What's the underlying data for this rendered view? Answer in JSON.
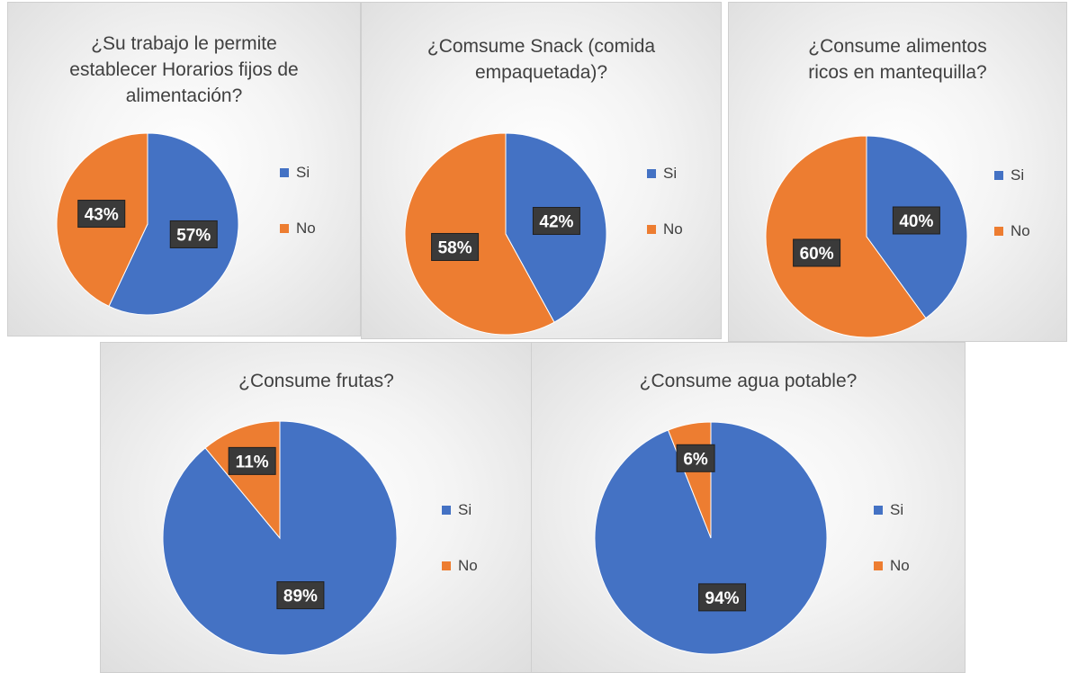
{
  "colors": {
    "si": "#4472C4",
    "no": "#ED7D31"
  },
  "legend_labels": [
    "Si",
    "No"
  ],
  "chart_data": [
    {
      "type": "pie",
      "title_lines": [
        "¿Su trabajo le permite",
        "establecer Horarios fijos de",
        "alimentación?"
      ],
      "categories": [
        "Si",
        "No"
      ],
      "values": [
        57,
        43
      ],
      "value_labels": [
        "57%",
        "43%"
      ],
      "legend_position": "right"
    },
    {
      "type": "pie",
      "title_lines": [
        "¿Comsume  Snack (comida",
        "empaquetada)?"
      ],
      "categories": [
        "Si",
        "No"
      ],
      "values": [
        42,
        58
      ],
      "value_labels": [
        "42%",
        "58%"
      ],
      "legend_position": "right"
    },
    {
      "type": "pie",
      "title_lines": [
        "¿Consume  alimentos",
        "ricos en mantequilla?"
      ],
      "categories": [
        "Si",
        "No"
      ],
      "values": [
        40,
        60
      ],
      "value_labels": [
        "40%",
        "60%"
      ],
      "legend_position": "right"
    },
    {
      "type": "pie",
      "title_lines": [
        "¿Consume  frutas?"
      ],
      "categories": [
        "Si",
        "No"
      ],
      "values": [
        89,
        11
      ],
      "value_labels": [
        "89%",
        "11%"
      ],
      "legend_position": "right"
    },
    {
      "type": "pie",
      "title_lines": [
        "¿Consume  agua potable?"
      ],
      "categories": [
        "Si",
        "No"
      ],
      "values": [
        94,
        6
      ],
      "value_labels": [
        "94%",
        "6%"
      ],
      "legend_position": "right"
    }
  ]
}
